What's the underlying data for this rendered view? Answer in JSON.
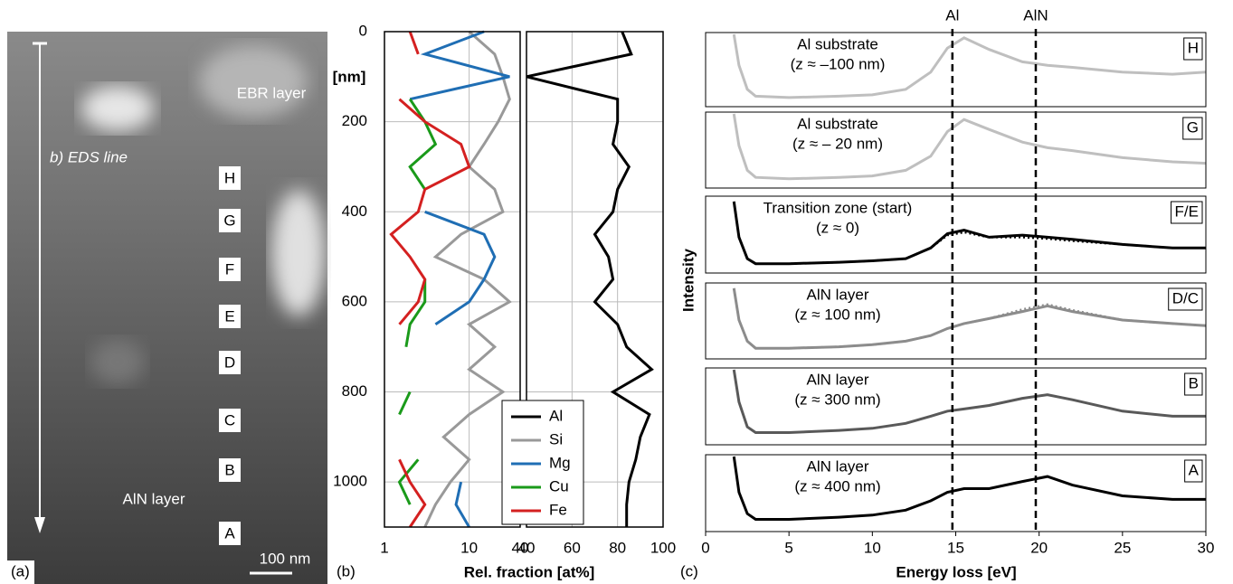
{
  "panel_a": {
    "label": "(a)",
    "annotations": [
      "EBR layer",
      "b) EDS line",
      "AlN layer"
    ],
    "points": [
      "H",
      "G",
      "F",
      "E",
      "D",
      "C",
      "B",
      "A"
    ],
    "scale_bar": "100 nm"
  },
  "chart_data": [
    {
      "type": "line",
      "panel_label": "(b)",
      "y_label": "[nm]",
      "x_label": "Rel. fraction [at%]",
      "log_x": true,
      "grid": true,
      "xlim": [
        1,
        40
      ],
      "xticks": [
        1,
        10,
        40
      ],
      "ylim": [
        0,
        1100
      ],
      "yticks": [
        0,
        200,
        400,
        600,
        800,
        1000
      ],
      "depth": [
        0,
        50,
        100,
        150,
        200,
        250,
        300,
        350,
        400,
        450,
        500,
        550,
        600,
        650,
        700,
        750,
        800,
        850,
        900,
        950,
        1000,
        1050,
        1100
      ],
      "series": [
        {
          "name": "Si",
          "color": "#999999",
          "values": [
            10,
            20,
            25,
            30,
            22,
            15,
            10,
            20,
            25,
            8,
            4,
            15,
            30,
            10,
            20,
            10,
            25,
            10,
            5,
            10,
            6,
            4,
            3
          ]
        },
        {
          "name": "Mg",
          "color": "#1f6eb4",
          "values": [
            15,
            3,
            30,
            2,
            null,
            null,
            null,
            null,
            3,
            15,
            20,
            15,
            10,
            4,
            null,
            null,
            null,
            null,
            null,
            null,
            8,
            7,
            10
          ]
        },
        {
          "name": "Cu",
          "color": "#1a9a1a",
          "values": [
            null,
            null,
            null,
            2,
            3,
            4,
            2,
            3,
            null,
            null,
            null,
            3,
            3,
            2,
            1.8,
            null,
            2,
            1.5,
            null,
            2.5,
            1.5,
            2,
            null
          ]
        },
        {
          "name": "Fe",
          "color": "#d42020",
          "values": [
            2,
            2.5,
            null,
            1.5,
            3,
            8,
            10,
            3,
            2.5,
            1.2,
            2,
            3,
            2.5,
            1.5,
            null,
            null,
            null,
            null,
            null,
            1.5,
            2,
            3,
            2
          ]
        }
      ]
    },
    {
      "type": "line",
      "log_x": false,
      "grid": true,
      "xlim": [
        40,
        100
      ],
      "xticks": [
        40,
        60,
        80,
        100
      ],
      "ylim": [
        0,
        1100
      ],
      "depth": [
        0,
        50,
        100,
        150,
        200,
        250,
        300,
        350,
        400,
        450,
        500,
        550,
        600,
        650,
        700,
        750,
        800,
        850,
        900,
        950,
        1000,
        1050,
        1100
      ],
      "series": [
        {
          "name": "Al",
          "color": "#000000",
          "values": [
            82,
            86,
            40,
            80,
            80,
            78,
            85,
            80,
            78,
            70,
            76,
            78,
            70,
            80,
            84,
            95,
            78,
            94,
            90,
            88,
            85,
            84,
            84
          ]
        }
      ]
    },
    {
      "type": "line",
      "panel_label": "(c)",
      "x_label": "Energy loss [eV]",
      "y_label": "Intensity",
      "xlim": [
        0,
        30
      ],
      "xticks": [
        0,
        5,
        10,
        15,
        20,
        25,
        30
      ],
      "ylim": [
        0,
        1
      ],
      "x": [
        1.7,
        2,
        2.5,
        3,
        5,
        8,
        10,
        12,
        13.5,
        14.5,
        15.5,
        17,
        19,
        20.5,
        22,
        25,
        28,
        30
      ],
      "reference_lines": [
        {
          "x": 14.8,
          "label": "Al"
        },
        {
          "x": 19.8,
          "label": "AlN"
        }
      ],
      "panels": [
        {
          "label": [
            "Al substrate",
            "(z ≈ –100 nm)"
          ],
          "tag": "H",
          "color": "#bfbfbf",
          "values": [
            1.0,
            0.55,
            0.2,
            0.1,
            0.08,
            0.1,
            0.12,
            0.2,
            0.45,
            0.8,
            0.95,
            0.78,
            0.6,
            0.55,
            0.52,
            0.45,
            0.42,
            0.45
          ]
        },
        {
          "label": [
            "Al substrate",
            "(z ≈ – 20 nm)"
          ],
          "tag": "G",
          "color": "#bfbfbf",
          "values": [
            1.0,
            0.55,
            0.2,
            0.1,
            0.08,
            0.1,
            0.12,
            0.2,
            0.4,
            0.75,
            0.92,
            0.78,
            0.6,
            0.52,
            0.48,
            0.38,
            0.32,
            0.3
          ]
        },
        {
          "label": [
            "Transition zone (start)",
            "(z ≈ 0)"
          ],
          "tag": "F/E",
          "color": "#000000",
          "values": [
            0.95,
            0.45,
            0.15,
            0.08,
            0.08,
            0.1,
            0.12,
            0.15,
            0.3,
            0.5,
            0.55,
            0.45,
            0.48,
            0.45,
            0.42,
            0.35,
            0.3,
            0.3
          ],
          "dotted_values": [
            0.95,
            0.45,
            0.15,
            0.08,
            0.08,
            0.1,
            0.12,
            0.15,
            0.3,
            0.48,
            0.52,
            0.45,
            0.45,
            0.43,
            0.4,
            0.35,
            0.3,
            0.3
          ]
        },
        {
          "label": [
            "AlN layer",
            "(z ≈ 100 nm)"
          ],
          "tag": "D/C",
          "color": "#8c8c8c",
          "values": [
            0.95,
            0.5,
            0.2,
            0.1,
            0.1,
            0.12,
            0.15,
            0.2,
            0.28,
            0.38,
            0.45,
            0.52,
            0.62,
            0.7,
            0.62,
            0.5,
            0.45,
            0.42
          ],
          "dotted_values": [
            0.95,
            0.5,
            0.2,
            0.1,
            0.1,
            0.12,
            0.15,
            0.2,
            0.28,
            0.38,
            0.45,
            0.52,
            0.65,
            0.72,
            0.64,
            0.5,
            0.45,
            0.42
          ]
        },
        {
          "label": [
            "AlN layer",
            "(z ≈ 300 nm)"
          ],
          "tag": "B",
          "color": "#595959",
          "values": [
            1.0,
            0.55,
            0.2,
            0.12,
            0.12,
            0.15,
            0.18,
            0.25,
            0.35,
            0.42,
            0.45,
            0.5,
            0.6,
            0.65,
            0.58,
            0.42,
            0.35,
            0.35
          ]
        },
        {
          "label": [
            "AlN layer",
            "(z ≈ 400 nm)"
          ],
          "tag": "A",
          "color": "#000000",
          "values": [
            1.0,
            0.5,
            0.2,
            0.12,
            0.12,
            0.15,
            0.18,
            0.25,
            0.38,
            0.5,
            0.55,
            0.55,
            0.65,
            0.72,
            0.6,
            0.45,
            0.4,
            0.4
          ]
        }
      ]
    }
  ]
}
